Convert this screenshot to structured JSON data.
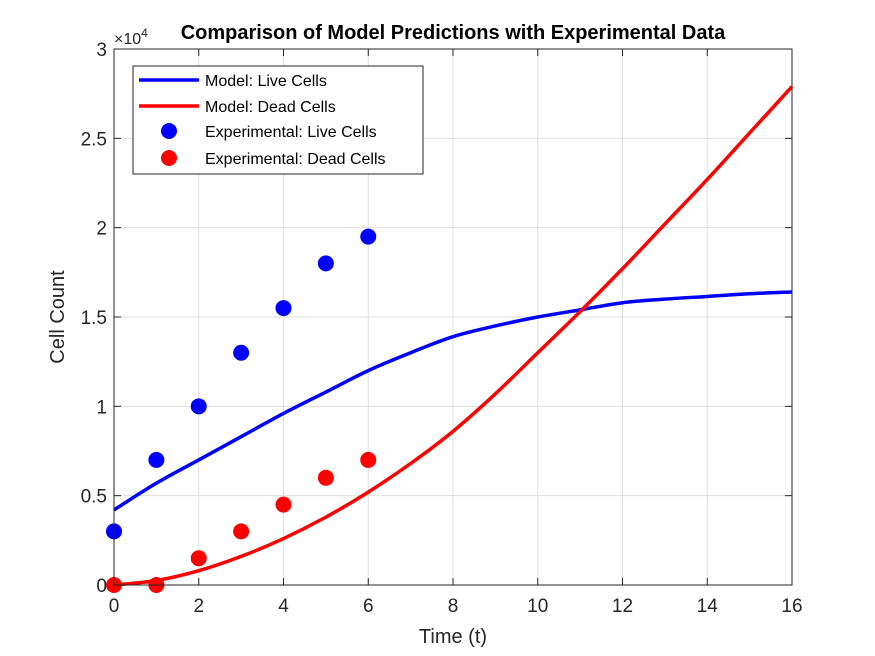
{
  "chart_data": {
    "type": "line",
    "title": "Comparison of Model Predictions with Experimental Data",
    "xlabel": "Time (t)",
    "ylabel": "Cell Count",
    "xlim": [
      0,
      16
    ],
    "ylim": [
      0,
      30000
    ],
    "x_ticks": [
      0,
      2,
      4,
      6,
      8,
      10,
      12,
      14,
      16
    ],
    "x_tick_labels": [
      "0",
      "2",
      "4",
      "6",
      "8",
      "10",
      "12",
      "14",
      "16"
    ],
    "y_ticks": [
      0,
      5000,
      10000,
      15000,
      20000,
      25000,
      30000
    ],
    "y_tick_labels": [
      "0",
      "0.5",
      "1",
      "1.5",
      "2",
      "2.5",
      "3"
    ],
    "y_exponent_label": "×10",
    "y_exponent_power": "4",
    "grid": true,
    "legend_position": "top-left",
    "series": [
      {
        "name": "Model: Live Cells",
        "kind": "line",
        "color": "#0000ff",
        "x": [
          0,
          1,
          2,
          3,
          4,
          5,
          6,
          7,
          8,
          9,
          10,
          11,
          12,
          13,
          14,
          15,
          16
        ],
        "y": [
          4200,
          5700,
          7000,
          8300,
          9600,
          10800,
          12000,
          13000,
          13900,
          14500,
          15000,
          15400,
          15800,
          16000,
          16150,
          16300,
          16400
        ]
      },
      {
        "name": "Model: Dead Cells",
        "kind": "line",
        "color": "#ff0000",
        "x": [
          0,
          1,
          2,
          3,
          4,
          5,
          6,
          7,
          8,
          9,
          10,
          11,
          12,
          13,
          14,
          15,
          16
        ],
        "y": [
          0,
          250,
          800,
          1600,
          2600,
          3800,
          5200,
          6800,
          8600,
          10700,
          13000,
          15300,
          17700,
          20200,
          22700,
          25300,
          27900
        ]
      },
      {
        "name": "Experimental: Live Cells",
        "kind": "scatter",
        "color": "#0000ff",
        "x": [
          0,
          1,
          2,
          3,
          4,
          5,
          6
        ],
        "y": [
          3000,
          7000,
          10000,
          13000,
          15500,
          18000,
          19500
        ]
      },
      {
        "name": "Experimental: Dead Cells",
        "kind": "scatter",
        "color": "#ff0000",
        "x": [
          0,
          1,
          2,
          3,
          4,
          5,
          6
        ],
        "y": [
          0,
          0,
          1500,
          3000,
          4500,
          6000,
          7000
        ]
      }
    ]
  }
}
